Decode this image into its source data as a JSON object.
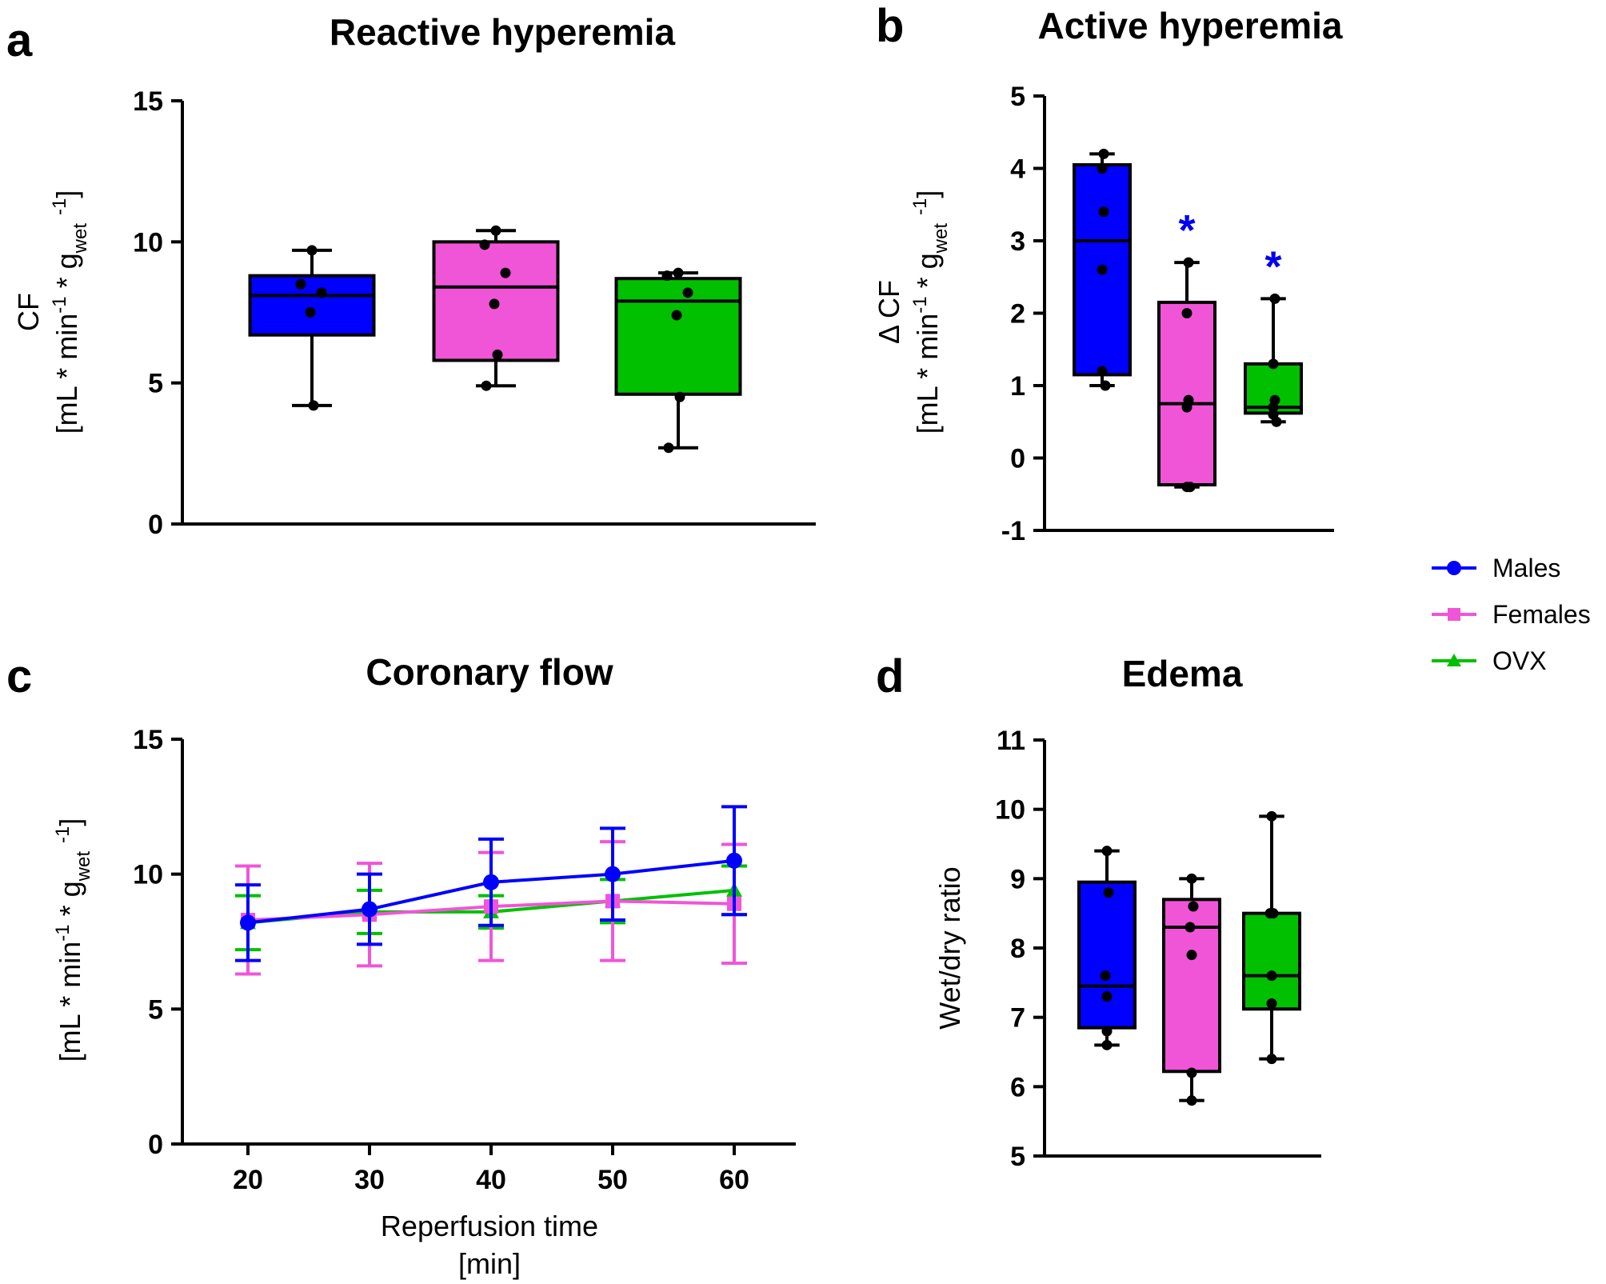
{
  "colors": {
    "Males": "#0000ff",
    "Females": "#f055d8",
    "OVX": "#00c000",
    "star": "#0000ee"
  },
  "legend": {
    "items": [
      {
        "label": "Males",
        "marker": "circle"
      },
      {
        "label": "Females",
        "marker": "square"
      },
      {
        "label": "OVX",
        "marker": "triangle"
      }
    ]
  },
  "chart_data": [
    {
      "id": "a",
      "panel_letter": "a",
      "type": "box",
      "title": "Reactive hyperemia",
      "ylabel_lines": [
        "CF",
        "[mL * min",
        "-1",
        " * g",
        "wet",
        " ",
        "-1",
        "]"
      ],
      "ylim": [
        0,
        15
      ],
      "yticks": [
        0,
        5,
        10,
        15
      ],
      "groups": [
        {
          "name": "Males",
          "min": 4.2,
          "q1": 6.7,
          "median": 8.1,
          "q3": 8.8,
          "max": 9.7,
          "points": [
            9.7,
            8.5,
            8.2,
            7.5,
            4.2
          ]
        },
        {
          "name": "Females",
          "min": 4.9,
          "q1": 5.8,
          "median": 8.4,
          "q3": 10.0,
          "max": 10.4,
          "points": [
            10.4,
            9.9,
            8.9,
            7.8,
            6.0,
            4.9
          ]
        },
        {
          "name": "OVX",
          "min": 2.7,
          "q1": 4.6,
          "median": 7.9,
          "q3": 8.7,
          "max": 8.9,
          "points": [
            8.9,
            8.8,
            8.2,
            7.4,
            4.5,
            2.7
          ]
        }
      ]
    },
    {
      "id": "b",
      "panel_letter": "b",
      "type": "box",
      "title": "Active hyperemia",
      "ylabel_lines": [
        "Δ CF",
        "[mL * min",
        "-1",
        " * g",
        "wet",
        " ",
        "-1",
        "]"
      ],
      "ylim": [
        -1,
        5
      ],
      "yticks": [
        -1,
        0,
        1,
        2,
        3,
        4,
        5
      ],
      "groups": [
        {
          "name": "Males",
          "min": 1.0,
          "q1": 1.15,
          "median": 3.0,
          "q3": 4.05,
          "max": 4.2,
          "points": [
            4.2,
            4.0,
            3.4,
            2.6,
            1.2,
            1.0
          ],
          "star": false
        },
        {
          "name": "Females",
          "min": -0.4,
          "q1": -0.37,
          "median": 0.75,
          "q3": 2.15,
          "max": 2.7,
          "points": [
            2.7,
            2.0,
            0.8,
            0.7,
            -0.4,
            -0.4
          ],
          "star": true
        },
        {
          "name": "OVX",
          "min": 0.5,
          "q1": 0.62,
          "median": 0.7,
          "q3": 1.3,
          "max": 2.2,
          "points": [
            2.2,
            1.3,
            0.8,
            0.7,
            0.6,
            0.5
          ],
          "star": true
        }
      ],
      "star_label": "*"
    },
    {
      "id": "c",
      "panel_letter": "c",
      "type": "line",
      "title": "Coronary flow",
      "ylabel_lines": [
        "[mL * min",
        "-1",
        " * g",
        "wet",
        " ",
        "-1",
        "]"
      ],
      "xlabel": "Reperfusion time",
      "xlabel2": "[min]",
      "x": [
        20,
        30,
        40,
        50,
        60
      ],
      "xlim": [
        15,
        65
      ],
      "ylim": [
        0,
        15
      ],
      "yticks": [
        0,
        5,
        10,
        15
      ],
      "series": [
        {
          "name": "OVX",
          "values": [
            8.2,
            8.6,
            8.6,
            9.0,
            9.4
          ],
          "err": [
            1.0,
            0.8,
            0.6,
            0.8,
            0.9
          ]
        },
        {
          "name": "Females",
          "values": [
            8.3,
            8.5,
            8.8,
            9.0,
            8.9
          ],
          "err": [
            2.0,
            1.9,
            2.0,
            2.2,
            2.2
          ]
        },
        {
          "name": "Males",
          "values": [
            8.2,
            8.7,
            9.7,
            10.0,
            10.5
          ],
          "err": [
            1.4,
            1.3,
            1.6,
            1.7,
            2.0
          ]
        }
      ]
    },
    {
      "id": "d",
      "panel_letter": "d",
      "type": "box",
      "title": "Edema",
      "ylabel_lines": [
        "Wet/dry ratio"
      ],
      "ylim": [
        5,
        11
      ],
      "yticks": [
        5,
        6,
        7,
        8,
        9,
        10,
        11
      ],
      "groups": [
        {
          "name": "Males",
          "min": 6.6,
          "q1": 6.85,
          "median": 7.45,
          "q3": 8.95,
          "max": 9.4,
          "points": [
            9.4,
            8.8,
            7.6,
            7.3,
            6.8,
            6.6
          ]
        },
        {
          "name": "Females",
          "min": 5.8,
          "q1": 6.22,
          "median": 8.3,
          "q3": 8.7,
          "max": 9.0,
          "points": [
            9.0,
            8.6,
            8.3,
            7.9,
            6.2,
            5.8
          ]
        },
        {
          "name": "OVX",
          "min": 6.4,
          "q1": 7.12,
          "median": 7.6,
          "q3": 8.5,
          "max": 9.9,
          "points": [
            9.9,
            8.5,
            8.5,
            7.6,
            7.2,
            6.4
          ]
        }
      ]
    }
  ]
}
